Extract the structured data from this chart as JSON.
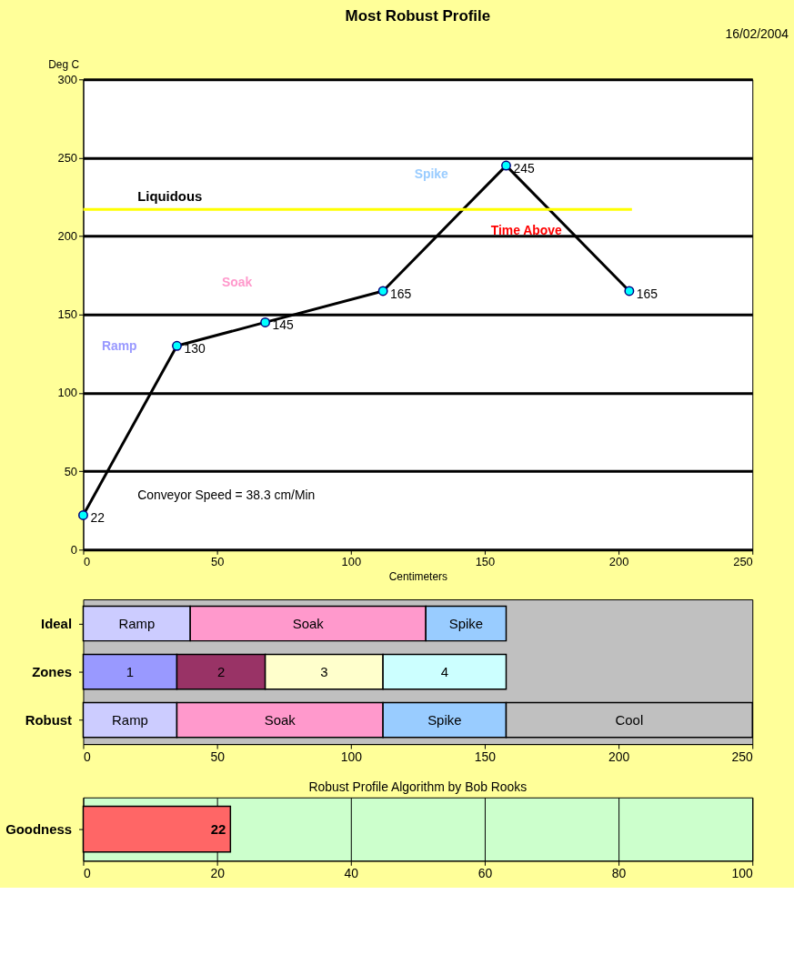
{
  "chart_data": [
    {
      "type": "line",
      "title": "Most Robust Profile",
      "xlabel": "Centimeters",
      "ylabel": "Deg C",
      "x": [
        0,
        35,
        68,
        112,
        158,
        204
      ],
      "series": [
        {
          "color": "#000000",
          "values": [
            22,
            130,
            145,
            165,
            245,
            165
          ]
        }
      ],
      "data_labels": true,
      "marker": "circle",
      "line_style": "solid",
      "xlim": [
        0,
        250
      ],
      "xticks": [
        0,
        50,
        100,
        150,
        200,
        250
      ],
      "ylim": [
        0,
        300
      ],
      "yticks": [
        0,
        50,
        100,
        150,
        200,
        250,
        300
      ],
      "grid": "y",
      "ref_lines": [
        {
          "axis": "y",
          "value": 217,
          "label": "Liquidous",
          "color": "#ffff00"
        }
      ],
      "annotations": [
        "16/02/2004",
        "Conveyor Speed = 38.3 cm/Min",
        "Ramp",
        "Soak",
        "Spike",
        "Time Above"
      ]
    },
    {
      "type": "bar",
      "orientation": "horizontal",
      "stacked": true,
      "categories": [
        "Ideal",
        "Zones",
        "Robust"
      ],
      "series": [
        {
          "name": "Ramp",
          "color": "#ccccff",
          "values": [
            40,
            null,
            35
          ]
        },
        {
          "name": "Soak",
          "color": "#ff99cc",
          "values": [
            88,
            null,
            77
          ]
        },
        {
          "name": "Spike",
          "color": "#99ccff",
          "values": [
            30,
            null,
            46
          ]
        },
        {
          "name": "1",
          "color": "#9999ff",
          "values": [
            null,
            35,
            null
          ]
        },
        {
          "name": "2",
          "color": "#993366",
          "values": [
            null,
            33,
            null
          ]
        },
        {
          "name": "3",
          "color": "#ffffcc",
          "values": [
            null,
            44,
            null
          ]
        },
        {
          "name": "4",
          "color": "#ccffff",
          "values": [
            null,
            46,
            null
          ]
        },
        {
          "name": "Cool",
          "color": "#c0c0c0",
          "values": [
            null,
            null,
            92
          ]
        }
      ],
      "xlim": [
        0,
        250
      ],
      "xticks": [
        0,
        50,
        100,
        150,
        200,
        250
      ]
    },
    {
      "type": "bar",
      "orientation": "horizontal",
      "title": "Robust Profile Algorithm by Bob Rooks",
      "categories": [
        "Goodness"
      ],
      "values": [
        22
      ],
      "color": "#ff6666",
      "data_labels": true,
      "xlim": [
        0,
        100
      ],
      "xticks": [
        0,
        20,
        40,
        60,
        80,
        100
      ],
      "grid": "x"
    }
  ]
}
